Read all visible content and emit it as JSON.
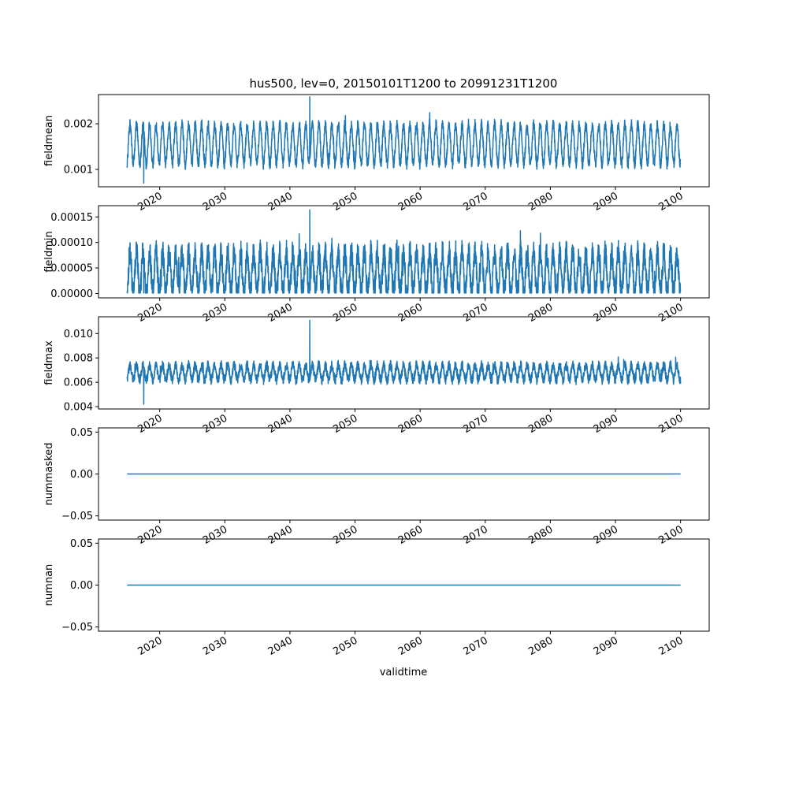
{
  "chart_data": {
    "type": "line",
    "title": "hus500, lev=0, 20150101T1200 to 20991231T1200",
    "xlabel": "validtime",
    "x_tick_labels": [
      "2020",
      "2030",
      "2040",
      "2050",
      "2060",
      "2070",
      "2080",
      "2090",
      "2100"
    ],
    "x_tick_values": [
      2020,
      2030,
      2040,
      2050,
      2060,
      2070,
      2080,
      2090,
      2100
    ],
    "x_range": [
      "2015-01-01",
      "2099-12-31"
    ],
    "xlim": [
      2010.6,
      2104.4
    ],
    "line_color": "#1f77b4",
    "grid": false,
    "legend": "none",
    "panels": [
      {
        "ylabel": "fieldmean",
        "ylim": [
          0.00062,
          0.00264
        ],
        "y_tick_values": [
          0.001,
          0.002
        ],
        "y_tick_labels": [
          "0.001",
          "0.002"
        ],
        "series": {
          "kind": "seasonal",
          "mean": 0.00155,
          "amplitude": 0.00043,
          "noise": 0.00012,
          "min": 0.0007,
          "max": 0.00259
        }
      },
      {
        "ylabel": "fieldmin",
        "ylim": [
          -8.5e-06,
          0.000172
        ],
        "y_tick_values": [
          0.0,
          5e-05,
          0.0001,
          0.00015
        ],
        "y_tick_labels": [
          "0.00000",
          "0.00005",
          "0.00010",
          "0.00015"
        ],
        "series": {
          "kind": "seasonal",
          "mean": 4e-05,
          "amplitude": 4e-05,
          "noise": 2.5e-05,
          "min": 1e-06,
          "max": 0.000164
        }
      },
      {
        "ylabel": "fieldmax",
        "ylim": [
          0.00381,
          0.01138
        ],
        "y_tick_values": [
          0.004,
          0.006,
          0.008,
          0.01
        ],
        "y_tick_labels": [
          "0.004",
          "0.006",
          "0.008",
          "0.010"
        ],
        "series": {
          "kind": "seasonal",
          "mean": 0.0068,
          "amplitude": 0.0006,
          "noise": 0.0004,
          "min": 0.0042,
          "max": 0.0111
        }
      },
      {
        "ylabel": "nummasked",
        "ylim": [
          -0.055,
          0.055
        ],
        "y_tick_values": [
          -0.05,
          0.0,
          0.05
        ],
        "y_tick_labels": [
          "−0.05",
          "0.00",
          "0.05"
        ],
        "series": {
          "kind": "constant",
          "value": 0.0
        }
      },
      {
        "ylabel": "numnan",
        "ylim": [
          -0.055,
          0.055
        ],
        "y_tick_values": [
          -0.05,
          0.0,
          0.05
        ],
        "y_tick_labels": [
          "−0.05",
          "0.00",
          "0.05"
        ],
        "series": {
          "kind": "constant",
          "value": 0.0
        }
      }
    ]
  }
}
